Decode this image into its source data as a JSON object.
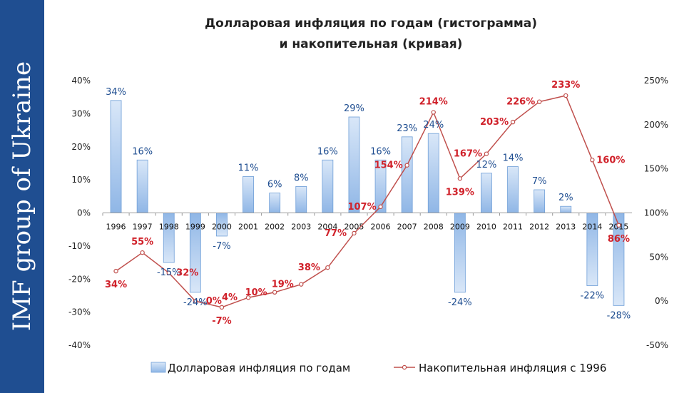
{
  "sidebar": {
    "text": "IMF group of Ukraine",
    "color": "#1f4e91"
  },
  "chart_data": {
    "type": "bar",
    "title_lines": [
      "Долларовая инфляция по годам (гистограмма)",
      "и накопительная (кривая)"
    ],
    "categories": [
      "1996",
      "1997",
      "1998",
      "1999",
      "2000",
      "2001",
      "2002",
      "2003",
      "2004",
      "2005",
      "2006",
      "2007",
      "2008",
      "2009",
      "2010",
      "2011",
      "2012",
      "2013",
      "2014",
      "2015"
    ],
    "series": [
      {
        "name": "Долларовая инфляция по годам",
        "kind": "bar",
        "axis": "left",
        "color": "#a9c8ee",
        "values": [
          34,
          16,
          -15,
          -24,
          -7,
          11,
          6,
          8,
          16,
          29,
          16,
          23,
          24,
          -24,
          12,
          14,
          7,
          2,
          -22,
          -28
        ],
        "labels": [
          "34%",
          "16%",
          "-15%",
          "-24%",
          "-7%",
          "11%",
          "6%",
          "8%",
          "16%",
          "29%",
          "16%",
          "23%",
          "24%",
          "-24%",
          "12%",
          "14%",
          "7%",
          "2%",
          "-22%",
          "-28%"
        ]
      },
      {
        "name": "Накопительная инфляция с 1996",
        "kind": "line",
        "axis": "right",
        "color": "#c0504d",
        "values": [
          34,
          55,
          32,
          0,
          -7,
          4,
          10,
          19,
          38,
          77,
          107,
          154,
          214,
          139,
          167,
          203,
          226,
          233,
          160,
          86
        ],
        "labels": [
          "34%",
          "55%",
          "32%",
          "0%",
          "-7%",
          "4%",
          "10%",
          "19%",
          "38%",
          "77%",
          "107%",
          "154%",
          "214%",
          "139%",
          "167%",
          "203%",
          "226%",
          "233%",
          "160%",
          "86%"
        ]
      }
    ],
    "y_left": {
      "min": -40,
      "max": 40,
      "step": 10,
      "tick_labels": [
        "-40%",
        "-30%",
        "-20%",
        "-10%",
        "0%",
        "10%",
        "20%",
        "30%",
        "40%"
      ]
    },
    "y_right": {
      "min": -50,
      "max": 250,
      "step": 50,
      "tick_labels": [
        "-50%",
        "0%",
        "50%",
        "100%",
        "150%",
        "200%",
        "250%"
      ]
    },
    "grid": false,
    "legend_position": "bottom"
  }
}
